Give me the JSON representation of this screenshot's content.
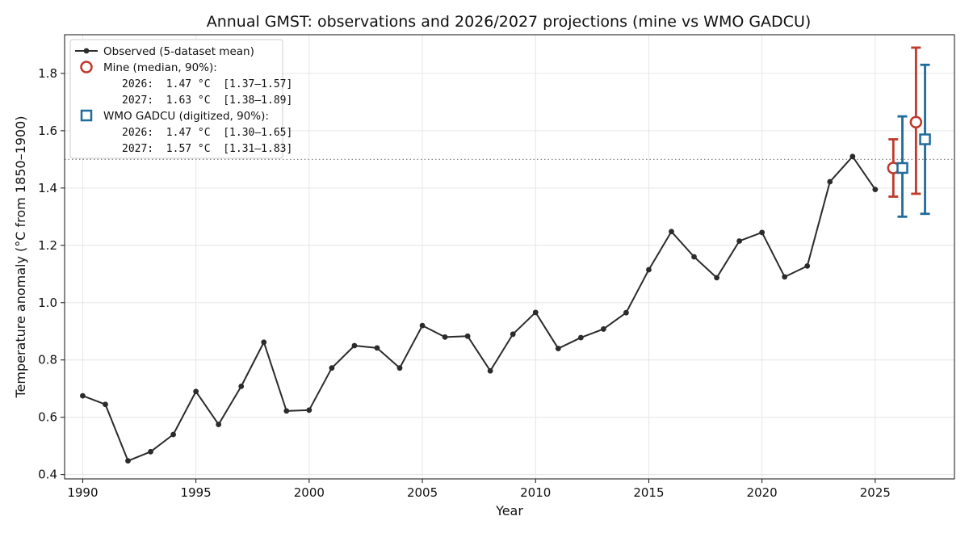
{
  "chart_data": {
    "type": "line",
    "title": "Annual GMST: observations and 2026/2027 projections (mine vs WMO GADCU)",
    "xlabel": "Year",
    "ylabel": "Temperature anomaly (°C from 1850–1900)",
    "xlim": [
      1989.2,
      2028.5
    ],
    "ylim": [
      0.385,
      1.935
    ],
    "xticks": [
      1990,
      1995,
      2000,
      2005,
      2010,
      2015,
      2020,
      2025
    ],
    "yticks": [
      0.4,
      0.6,
      0.8,
      1.0,
      1.2,
      1.4,
      1.6,
      1.8
    ],
    "ytick_labels": [
      "0.4",
      "0.6",
      "0.8",
      "1.0",
      "1.2",
      "1.4",
      "1.6",
      "1.8"
    ],
    "grid": true,
    "legend_position": "top-left",
    "reference_line": {
      "y": 1.5,
      "style": "dotted"
    },
    "observed": {
      "name": "Observed (5-dataset mean)",
      "color": "#2b2b2b",
      "x": [
        1990,
        1991,
        1992,
        1993,
        1994,
        1995,
        1996,
        1997,
        1998,
        1999,
        2000,
        2001,
        2002,
        2003,
        2004,
        2005,
        2006,
        2007,
        2008,
        2009,
        2010,
        2011,
        2012,
        2013,
        2014,
        2015,
        2016,
        2017,
        2018,
        2019,
        2020,
        2021,
        2022,
        2023,
        2024,
        2025
      ],
      "y": [
        0.675,
        0.645,
        0.448,
        0.48,
        0.54,
        0.69,
        0.575,
        0.708,
        0.862,
        0.622,
        0.625,
        0.772,
        0.85,
        0.842,
        0.772,
        0.92,
        0.88,
        0.883,
        0.762,
        0.89,
        0.966,
        0.84,
        0.878,
        0.908,
        0.965,
        1.115,
        1.248,
        1.16,
        1.087,
        1.215,
        1.245,
        1.09,
        1.128,
        1.422,
        1.51,
        1.395
      ]
    },
    "projections": [
      {
        "name": "Mine (median, 90%):",
        "color": "#c0392b",
        "marker": "circle",
        "points": [
          {
            "year": 2026,
            "x": 2025.8,
            "median": 1.47,
            "low": 1.37,
            "high": 1.57,
            "label": "2026:  1.47 °C  [1.37–1.57]"
          },
          {
            "year": 2027,
            "x": 2026.8,
            "median": 1.63,
            "low": 1.38,
            "high": 1.89,
            "label": "2027:  1.63 °C  [1.38–1.89]"
          }
        ]
      },
      {
        "name": "WMO GADCU (digitized, 90%):",
        "color": "#1f6b9a",
        "marker": "square",
        "points": [
          {
            "year": 2026,
            "x": 2026.2,
            "median": 1.47,
            "low": 1.3,
            "high": 1.65,
            "label": "2026:  1.47 °C  [1.30–1.65]"
          },
          {
            "year": 2027,
            "x": 2027.2,
            "median": 1.57,
            "low": 1.31,
            "high": 1.83,
            "label": "2027:  1.57 °C  [1.31–1.83]"
          }
        ]
      }
    ]
  }
}
